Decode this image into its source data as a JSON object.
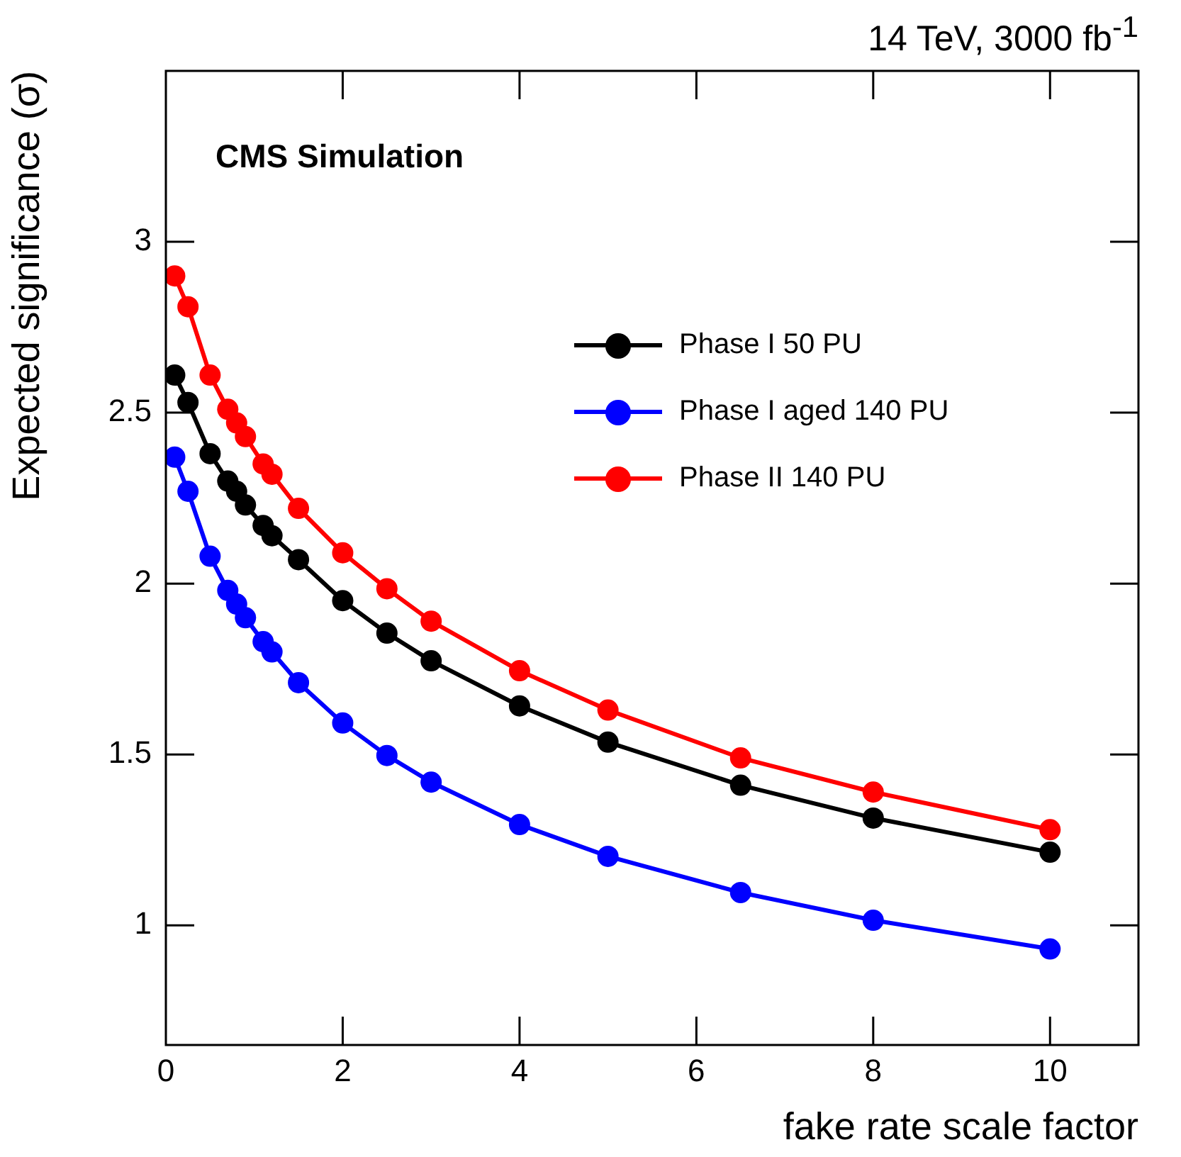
{
  "chart_data": {
    "type": "line",
    "title": "14 TeV, 3000 fb$^{-1}$",
    "xlabel": "fake rate scale factor",
    "ylabel": "Expected significance (σ)",
    "annotations": [
      "CMS Simulation"
    ],
    "x": [
      0.1,
      0.25,
      0.5,
      0.7,
      0.8,
      0.9,
      1.1,
      1.2,
      1.5,
      2,
      2.5,
      3,
      4,
      5,
      6.5,
      8,
      10
    ],
    "series": [
      {
        "name": "Phase I 50 PU",
        "color": "#000000",
        "values": [
          2.61,
          2.53,
          2.38,
          2.3,
          2.27,
          2.23,
          2.17,
          2.14,
          2.07,
          1.95,
          1.855,
          1.774,
          1.642,
          1.536,
          1.41,
          1.314,
          1.214
        ]
      },
      {
        "name": "Phase I aged 140 PU",
        "color": "#0000ff",
        "values": [
          2.37,
          2.27,
          2.08,
          1.98,
          1.94,
          1.9,
          1.83,
          1.8,
          1.71,
          1.592,
          1.497,
          1.419,
          1.295,
          1.202,
          1.096,
          1.015,
          0.931
        ]
      },
      {
        "name": "Phase II 140 PU",
        "color": "#ff0000",
        "values": [
          2.9,
          2.81,
          2.61,
          2.51,
          2.47,
          2.43,
          2.35,
          2.32,
          2.22,
          2.09,
          1.985,
          1.89,
          1.745,
          1.63,
          1.49,
          1.39,
          1.28
        ]
      }
    ],
    "xlim": [
      0,
      11
    ],
    "xticks": [
      0,
      2,
      4,
      6,
      8,
      10
    ],
    "ylim": [
      0.65,
      3.5
    ],
    "yticks": [
      1,
      1.5,
      2,
      2.5,
      3
    ],
    "grid": false,
    "legend": "right",
    "marker": "circle",
    "line_style": "solid"
  }
}
